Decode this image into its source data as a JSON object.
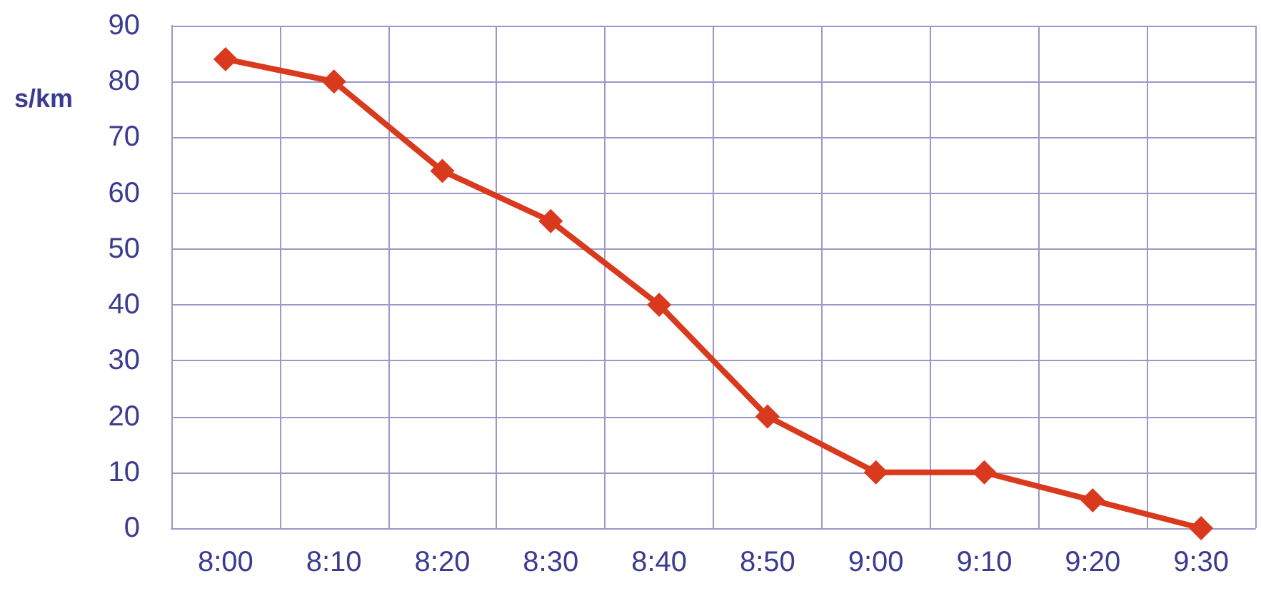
{
  "chart_data": {
    "type": "line",
    "ylabel": "s/km",
    "categories": [
      "8:00",
      "8:10",
      "8:20",
      "8:30",
      "8:40",
      "8:50",
      "9:00",
      "9:10",
      "9:20",
      "9:30"
    ],
    "series": [
      {
        "color": "#d9391c",
        "values": [
          84,
          80,
          64,
          55,
          40,
          20,
          10,
          10,
          5,
          0
        ]
      }
    ],
    "ylim": [
      0,
      90
    ],
    "yticks": [
      0,
      10,
      20,
      30,
      40,
      50,
      60,
      70,
      80,
      90
    ],
    "grid": true,
    "marker": "diamond",
    "line_style": "solid"
  }
}
